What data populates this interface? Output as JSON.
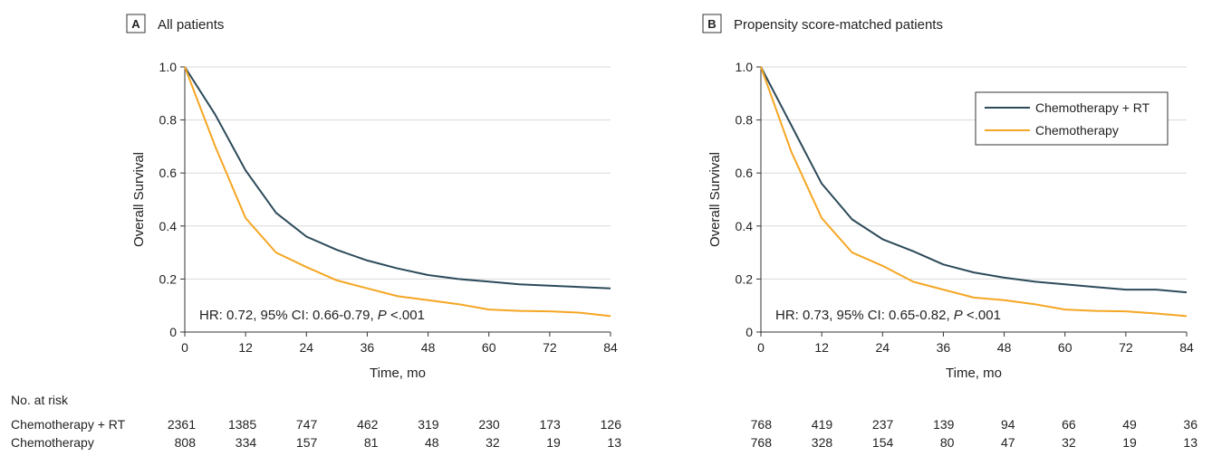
{
  "colors": {
    "chemo_rt": "#2c4a5a",
    "chemo": "#f5a623",
    "grid": "#d9d9d9",
    "axis": "#333333"
  },
  "risk_table": {
    "title": "No. at risk",
    "row_labels": [
      "Chemotherapy + RT",
      "Chemotherapy"
    ]
  },
  "chart_data": [
    {
      "type": "line",
      "panel_letter": "A",
      "title": "All patients",
      "xlabel": "Time, mo",
      "ylabel": "Overall Survival",
      "xlim": [
        0,
        84
      ],
      "ylim": [
        0,
        1
      ],
      "x_ticks": [
        0,
        12,
        24,
        36,
        48,
        60,
        72,
        84
      ],
      "x_tick_labels": [
        "0",
        "12",
        "24",
        "36",
        "48",
        "60",
        "72",
        "84"
      ],
      "y_ticks": [
        0,
        0.2,
        0.4,
        0.6,
        0.8,
        1.0
      ],
      "y_tick_labels": [
        "0",
        "0.2",
        "0.4",
        "0.6",
        "0.8",
        "1.0"
      ],
      "grid": "horizontal",
      "annotation": {
        "prefix": "HR: 0.72, 95% CI: 0.66-0.79, ",
        "p_label": "P",
        "suffix": " <.001"
      },
      "series": [
        {
          "name": "Chemotherapy + RT",
          "color": "#2c4a5a",
          "x": [
            0,
            6,
            12,
            18,
            24,
            30,
            36,
            42,
            48,
            54,
            60,
            66,
            72,
            78,
            84
          ],
          "y": [
            1.0,
            0.82,
            0.61,
            0.45,
            0.36,
            0.31,
            0.27,
            0.24,
            0.215,
            0.2,
            0.19,
            0.18,
            0.175,
            0.17,
            0.165
          ]
        },
        {
          "name": "Chemotherapy",
          "color": "#f5a623",
          "x": [
            0,
            6,
            12,
            18,
            24,
            30,
            36,
            42,
            48,
            54,
            60,
            66,
            72,
            78,
            84
          ],
          "y": [
            1.0,
            0.7,
            0.43,
            0.3,
            0.245,
            0.195,
            0.165,
            0.135,
            0.12,
            0.105,
            0.085,
            0.08,
            0.078,
            0.073,
            0.06
          ]
        }
      ],
      "at_risk": {
        "Chemotherapy + RT": [
          2361,
          1385,
          747,
          462,
          319,
          230,
          173,
          126
        ],
        "Chemotherapy": [
          808,
          334,
          157,
          81,
          48,
          32,
          19,
          13
        ]
      }
    },
    {
      "type": "line",
      "panel_letter": "B",
      "title": "Propensity score-matched patients",
      "xlabel": "Time, mo",
      "ylabel": "Overall Survival",
      "xlim": [
        0,
        84
      ],
      "ylim": [
        0,
        1
      ],
      "x_ticks": [
        0,
        12,
        24,
        36,
        48,
        60,
        72,
        84
      ],
      "x_tick_labels": [
        "0",
        "12",
        "24",
        "36",
        "48",
        "60",
        "72",
        "84"
      ],
      "y_ticks": [
        0,
        0.2,
        0.4,
        0.6,
        0.8,
        1.0
      ],
      "y_tick_labels": [
        "0",
        "0.2",
        "0.4",
        "0.6",
        "0.8",
        "1.0"
      ],
      "grid": "horizontal",
      "legend_position": "top-right",
      "legend": [
        "Chemotherapy + RT",
        "Chemotherapy"
      ],
      "annotation": {
        "prefix": "HR: 0.73, 95% CI: 0.65-0.82, ",
        "p_label": "P",
        "suffix": " <.001"
      },
      "series": [
        {
          "name": "Chemotherapy + RT",
          "color": "#2c4a5a",
          "x": [
            0,
            6,
            12,
            18,
            24,
            30,
            36,
            42,
            48,
            54,
            60,
            66,
            72,
            78,
            84
          ],
          "y": [
            1.0,
            0.78,
            0.56,
            0.425,
            0.35,
            0.305,
            0.255,
            0.225,
            0.205,
            0.19,
            0.18,
            0.17,
            0.16,
            0.16,
            0.15
          ]
        },
        {
          "name": "Chemotherapy",
          "color": "#f5a623",
          "x": [
            0,
            6,
            12,
            18,
            24,
            30,
            36,
            42,
            48,
            54,
            60,
            66,
            72,
            78,
            84
          ],
          "y": [
            1.0,
            0.68,
            0.43,
            0.3,
            0.25,
            0.19,
            0.16,
            0.13,
            0.12,
            0.105,
            0.085,
            0.08,
            0.078,
            0.07,
            0.06
          ]
        }
      ],
      "at_risk": {
        "Chemotherapy + RT": [
          768,
          419,
          237,
          139,
          94,
          66,
          49,
          36
        ],
        "Chemotherapy": [
          768,
          328,
          154,
          80,
          47,
          32,
          19,
          13
        ]
      }
    }
  ]
}
